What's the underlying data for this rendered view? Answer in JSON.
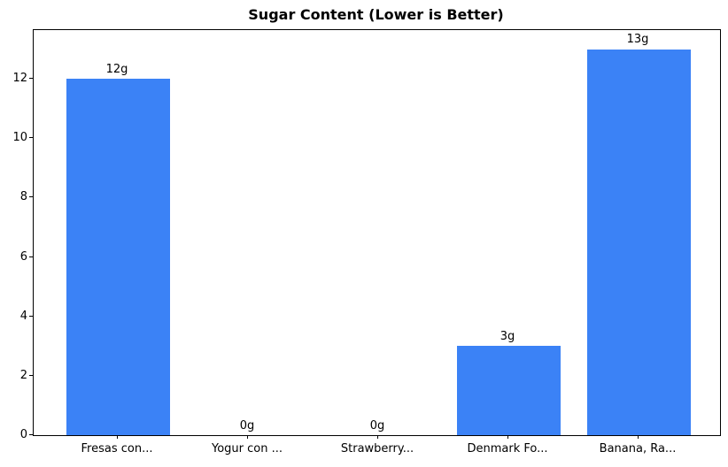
{
  "chart_data": {
    "type": "bar",
    "title": "Sugar Content (Lower is Better)",
    "categories": [
      "Fresas con...",
      "Yogur con ...",
      "Strawberry...",
      "Denmark Fo...",
      "Banana, Ra..."
    ],
    "values": [
      12,
      0,
      0,
      3,
      13
    ],
    "value_labels": [
      "12g",
      "0g",
      "0g",
      "3g",
      "13g"
    ],
    "yticks": [
      0,
      2,
      4,
      6,
      8,
      10,
      12
    ],
    "ylim": [
      0,
      13.64
    ],
    "xlabel": "",
    "ylabel": "",
    "bar_color": "#3b82f6",
    "text_color": "#000000",
    "spine_color": "#000000",
    "background_color": "#ffffff",
    "grid": false,
    "legend": null
  }
}
